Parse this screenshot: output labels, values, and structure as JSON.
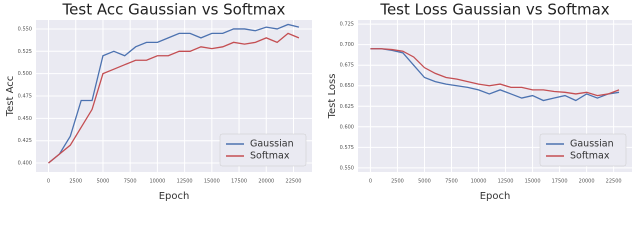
{
  "chart_data": [
    {
      "type": "line",
      "title": "Test Acc Gaussian vs Softmax",
      "x_label": "Epoch",
      "y_label": "Test Acc",
      "x": [
        0,
        1000,
        2000,
        3000,
        4000,
        5000,
        6000,
        7000,
        8000,
        9000,
        10000,
        11000,
        12000,
        13000,
        14000,
        15000,
        16000,
        17000,
        18000,
        19000,
        20000,
        21000,
        22000,
        23000
      ],
      "series": [
        {
          "name": "Gaussian",
          "color": "#4c72b0",
          "values": [
            0.4,
            0.41,
            0.43,
            0.47,
            0.47,
            0.52,
            0.525,
            0.52,
            0.53,
            0.535,
            0.535,
            0.54,
            0.545,
            0.545,
            0.54,
            0.545,
            0.545,
            0.55,
            0.55,
            0.548,
            0.552,
            0.55,
            0.555,
            0.552
          ]
        },
        {
          "name": "Softmax",
          "color": "#c44e52",
          "values": [
            0.4,
            0.41,
            0.42,
            0.44,
            0.46,
            0.5,
            0.505,
            0.51,
            0.515,
            0.515,
            0.52,
            0.52,
            0.525,
            0.525,
            0.53,
            0.528,
            0.53,
            0.535,
            0.533,
            0.535,
            0.54,
            0.535,
            0.545,
            0.54
          ]
        }
      ],
      "xlim": [
        -1150,
        24200
      ],
      "xticks": [
        0,
        2500,
        5000,
        7500,
        10000,
        12500,
        15000,
        17500,
        20000,
        22500
      ],
      "ylim": [
        0.39,
        0.56
      ],
      "yticks": [
        {
          "value": 0.4,
          "label": "0.400"
        },
        {
          "value": 0.425,
          "label": "0.425"
        },
        {
          "value": 0.45,
          "label": "0.450"
        },
        {
          "value": 0.475,
          "label": "0.475"
        },
        {
          "value": 0.5,
          "label": "0.500"
        },
        {
          "value": 0.525,
          "label": "0.525"
        },
        {
          "value": 0.55,
          "label": "0.550"
        }
      ],
      "grid": true,
      "legend": "lower right"
    },
    {
      "type": "line",
      "title": "Test Loss Gaussian vs Softmax",
      "x_label": "Epoch",
      "y_label": "Test Loss",
      "x": [
        0,
        1000,
        2000,
        3000,
        4000,
        5000,
        6000,
        7000,
        8000,
        9000,
        10000,
        11000,
        12000,
        13000,
        14000,
        15000,
        16000,
        17000,
        18000,
        19000,
        20000,
        21000,
        22000,
        23000
      ],
      "series": [
        {
          "name": "Gaussian",
          "color": "#4c72b0",
          "values": [
            0.695,
            0.695,
            0.693,
            0.69,
            0.675,
            0.66,
            0.655,
            0.652,
            0.65,
            0.648,
            0.645,
            0.64,
            0.645,
            0.64,
            0.635,
            0.638,
            0.632,
            0.635,
            0.638,
            0.632,
            0.64,
            0.635,
            0.64,
            0.642
          ]
        },
        {
          "name": "Softmax",
          "color": "#c44e52",
          "values": [
            0.695,
            0.695,
            0.694,
            0.692,
            0.685,
            0.672,
            0.665,
            0.66,
            0.658,
            0.655,
            0.652,
            0.65,
            0.652,
            0.648,
            0.648,
            0.645,
            0.645,
            0.643,
            0.642,
            0.64,
            0.642,
            0.638,
            0.64,
            0.645
          ]
        }
      ],
      "xlim": [
        -1150,
        24200
      ],
      "xticks": [
        0,
        2500,
        5000,
        7500,
        10000,
        12500,
        15000,
        17500,
        20000,
        22500
      ],
      "ylim": [
        0.545,
        0.73
      ],
      "yticks": [
        {
          "value": 0.55,
          "label": "0.550"
        },
        {
          "value": 0.575,
          "label": "0.575"
        },
        {
          "value": 0.6,
          "label": "0.600"
        },
        {
          "value": 0.625,
          "label": "0.625"
        },
        {
          "value": 0.65,
          "label": "0.650"
        },
        {
          "value": 0.675,
          "label": "0.675"
        },
        {
          "value": 0.7,
          "label": "0.700"
        },
        {
          "value": 0.725,
          "label": "0.725"
        }
      ],
      "grid": true,
      "legend": "lower right"
    }
  ]
}
